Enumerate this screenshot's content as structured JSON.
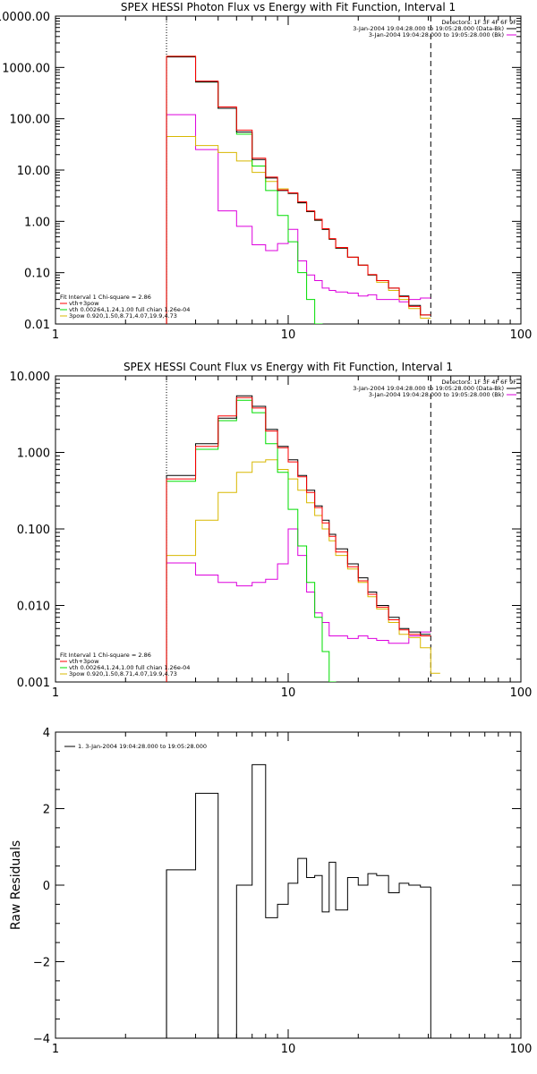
{
  "colors": {
    "red": "#ff0000",
    "black": "#000000",
    "green": "#00dd00",
    "yellow": "#d8b800",
    "magenta": "#dd00dd"
  },
  "chart_data": [
    {
      "type": "line",
      "title": "SPEX HESSI Photon Flux vs Energy with Fit Function, Interval 1",
      "xlabel": "",
      "ylabel": "",
      "xscale": "log",
      "yscale": "log",
      "xlim": [
        1,
        100
      ],
      "ylim": [
        0.01,
        10000
      ],
      "xticks": [
        1,
        10,
        100
      ],
      "xtick_labels": [
        "1",
        "10",
        "100"
      ],
      "yticks": [
        0.01,
        0.1,
        1,
        10,
        100,
        1000,
        10000
      ],
      "ytick_labels": [
        "0.01",
        "0.10",
        "1.00",
        "10.00",
        "100.00",
        "1000.00",
        "10000.00"
      ],
      "vlines": [
        {
          "x": 3,
          "style": "dotted"
        },
        {
          "x": 41,
          "style": "dashed"
        }
      ],
      "header": [
        "Detectors: 1F 3F 4F 6F 9F",
        "3-Jan-2004 19:04:28.000 to 19:05:28.000 (Data-Bk)",
        "3-Jan-2004 19:04:28.000 to 19:05:28.000 (Bk)"
      ],
      "legend_title": "Fit Interval 1   Chi-square = 2.86",
      "legend": [
        "vth+3pow",
        "vth 0.00264,1.24,1.00  full chian 1.26e-04",
        "3pow 0.920,1.50,8.71,4.07,19.9,4.73"
      ],
      "edges": [
        3,
        4,
        5,
        6,
        7,
        8,
        9,
        10,
        11,
        12,
        13,
        14,
        15,
        16,
        18,
        20,
        22,
        24,
        27,
        30,
        33,
        37,
        41
      ],
      "series": [
        {
          "name": "3-Jan-2004 19:04:28.000 to 19:05:28.000 (Data-Bk)",
          "color": "black",
          "values": [
            1600,
            520,
            160,
            55,
            16,
            7,
            4,
            3.5,
            2.3,
            1.55,
            1.05,
            0.7,
            0.45,
            0.3,
            0.2,
            0.14,
            0.09,
            0.07,
            0.05,
            0.035,
            0.023,
            0.015
          ]
        },
        {
          "name": "vth+3pow",
          "color": "red",
          "values": [
            1650,
            540,
            170,
            60,
            17,
            7.3,
            4.1,
            3.6,
            2.4,
            1.6,
            1.1,
            0.72,
            0.46,
            0.31,
            0.2,
            0.14,
            0.092,
            0.07,
            0.05,
            0.034,
            0.022,
            0.015
          ]
        },
        {
          "name": "vth 0.00264,1.24,1.00  full chian 1.26e-04",
          "color": "green",
          "values": [
            1650,
            520,
            160,
            50,
            12,
            4,
            1.3,
            0.4,
            0.1,
            0.03,
            0.01,
            0.003,
            null,
            null,
            null,
            null,
            null,
            null,
            null,
            null,
            null,
            null
          ]
        },
        {
          "name": "3pow 0.920,1.50,8.71,4.07,19.9,4.73",
          "color": "yellow",
          "values": [
            45,
            30,
            22,
            15,
            9,
            6,
            4.3,
            3.5,
            2.3,
            1.55,
            1.05,
            0.7,
            0.45,
            0.3,
            0.2,
            0.14,
            0.09,
            0.065,
            0.045,
            0.03,
            0.02,
            0.013
          ]
        },
        {
          "name": "3-Jan-2004 19:04:28.000 to 19:05:28.000 (Bk)",
          "color": "magenta",
          "values": [
            120,
            25,
            1.6,
            0.8,
            0.35,
            0.27,
            0.37,
            0.7,
            0.17,
            0.09,
            0.07,
            0.05,
            0.045,
            0.042,
            0.04,
            0.035,
            0.037,
            0.03,
            0.03,
            0.027,
            0.03,
            0.032
          ]
        }
      ]
    },
    {
      "type": "line",
      "title": "SPEX HESSI Count Flux vs Energy with Fit Function, Interval 1",
      "xlabel": "",
      "ylabel": "",
      "xscale": "log",
      "yscale": "log",
      "xlim": [
        1,
        100
      ],
      "ylim": [
        0.001,
        10
      ],
      "xticks": [
        1,
        10,
        100
      ],
      "xtick_labels": [
        "1",
        "10",
        "100"
      ],
      "yticks": [
        0.001,
        0.01,
        0.1,
        1,
        10
      ],
      "ytick_labels": [
        "0.001",
        "0.010",
        "0.100",
        "1.000",
        "10.000"
      ],
      "vlines": [
        {
          "x": 3,
          "style": "dotted"
        },
        {
          "x": 41,
          "style": "dashed"
        }
      ],
      "header": [
        "Detectors: 1F 3F 4F 6F 9F",
        "3-Jan-2004 19:04:28.000 to 19:05:28.000 (Data-Bk)",
        "3-Jan-2004 19:04:28.000 to 19:05:28.000 (Bk)"
      ],
      "legend_title": "Fit Interval 1   Chi-square = 2.86",
      "legend": [
        "vth+3pow",
        "vth 0.00264,1.24,1.00  full chian 1.26e-04",
        "3pow 0.920,1.50,8.71,4.07,19.9,4.73"
      ],
      "edges": [
        3,
        4,
        5,
        6,
        7,
        8,
        9,
        10,
        11,
        12,
        13,
        14,
        15,
        16,
        18,
        20,
        22,
        24,
        27,
        30,
        33,
        37,
        41,
        45
      ],
      "series": [
        {
          "name": "3-Jan-2004 19:04:28.000 to 19:05:28.000 (Data-Bk)",
          "color": "black",
          "values": [
            0.5,
            1.3,
            2.8,
            5.5,
            4,
            2,
            1.2,
            0.8,
            0.5,
            0.32,
            0.2,
            0.13,
            0.085,
            0.055,
            0.035,
            0.023,
            0.015,
            0.01,
            0.007,
            0.005,
            0.0045,
            0.0042,
            null
          ]
        },
        {
          "name": "vth+3pow",
          "color": "red",
          "values": [
            0.45,
            1.2,
            3,
            5.2,
            3.8,
            1.9,
            1.15,
            0.75,
            0.48,
            0.3,
            0.19,
            0.12,
            0.08,
            0.05,
            0.032,
            0.021,
            0.014,
            0.0095,
            0.0065,
            0.0048,
            0.0042,
            0.004,
            null
          ]
        },
        {
          "name": "vth 0.00264,1.24,1.00  full chian 1.26e-04",
          "color": "green",
          "values": [
            0.42,
            1.1,
            2.6,
            4.8,
            3.3,
            1.3,
            0.55,
            0.18,
            0.06,
            0.02,
            0.007,
            0.0025,
            0.001,
            0.0005,
            null,
            null,
            null,
            null,
            null,
            null,
            null,
            null,
            null
          ]
        },
        {
          "name": "3pow 0.920,1.50,8.71,4.07,19.9,4.73",
          "color": "yellow",
          "values": [
            0.045,
            0.13,
            0.3,
            0.55,
            0.75,
            0.8,
            0.6,
            0.45,
            0.32,
            0.22,
            0.15,
            0.1,
            0.07,
            0.045,
            0.03,
            0.02,
            0.013,
            0.009,
            0.006,
            0.0042,
            0.0038,
            0.0028,
            0.0013
          ]
        },
        {
          "name": "3-Jan-2004 19:04:28.000 to 19:05:28.000 (Bk)",
          "color": "magenta",
          "values": [
            0.036,
            0.025,
            0.02,
            0.018,
            0.02,
            0.022,
            0.035,
            0.1,
            0.045,
            0.015,
            0.008,
            0.006,
            0.004,
            0.004,
            0.0037,
            0.004,
            0.0037,
            0.0035,
            0.0032,
            0.0032,
            0.004,
            0.0045,
            null
          ]
        }
      ]
    },
    {
      "type": "line",
      "title": "",
      "xlabel": "",
      "ylabel": "Raw Residuals",
      "xscale": "log",
      "yscale": "linear",
      "xlim": [
        1,
        100
      ],
      "ylim": [
        -4,
        4
      ],
      "xticks": [
        1,
        10,
        100
      ],
      "xtick_labels": [
        "1",
        "10",
        "100"
      ],
      "yticks": [
        -4,
        -2,
        0,
        2,
        4
      ],
      "ytick_labels": [
        "−4",
        "−2",
        "0",
        "2",
        "4"
      ],
      "legend": [
        "1.  3-Jan-2004 19:04:28.000 to 19:05:28.000"
      ],
      "edges": [
        3,
        4,
        5,
        6,
        7,
        8,
        9,
        10,
        11,
        12,
        13,
        14,
        15,
        16,
        18,
        20,
        22,
        24,
        27,
        30,
        33,
        37,
        41
      ],
      "series": [
        {
          "name": "1.  3-Jan-2004 19:04:28.000 to 19:05:28.000",
          "color": "black",
          "values": [
            0.4,
            2.4,
            -4.1,
            0,
            3.15,
            -0.85,
            -0.5,
            0.05,
            0.7,
            0.2,
            0.25,
            -0.7,
            0.6,
            -0.65,
            0.2,
            0.0,
            0.3,
            0.25,
            -0.2,
            0.05,
            0.0,
            -0.05
          ]
        }
      ]
    }
  ]
}
